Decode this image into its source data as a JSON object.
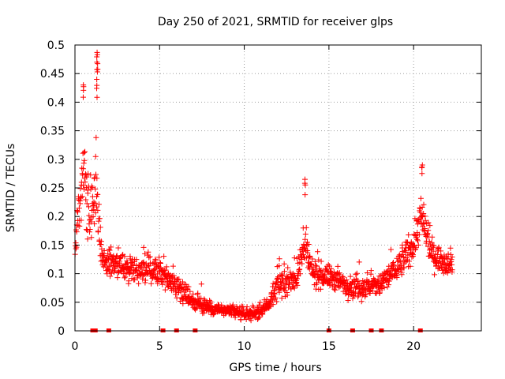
{
  "chart_data": {
    "type": "scatter",
    "title": "Day 250 of 2021, SRMTID for receiver glps",
    "xlabel": "GPS time / hours",
    "ylabel": "SRMTID / TECUs",
    "xlim": [
      0,
      24
    ],
    "ylim": [
      0,
      0.5
    ],
    "xticks": [
      0,
      5,
      10,
      15,
      20
    ],
    "xtick_labels": [
      "0",
      "5",
      "10",
      "15",
      "20"
    ],
    "yticks": [
      0,
      0.05,
      0.1,
      0.15,
      0.2,
      0.25,
      0.3,
      0.35,
      0.4,
      0.45,
      0.5
    ],
    "ytick_labels": [
      "0",
      "0.05",
      "0.1",
      "0.15",
      "0.2",
      "0.25",
      "0.3",
      "0.35",
      "0.4",
      "0.45",
      "0.5"
    ],
    "grid": true,
    "marker": "+",
    "color": "#ff0000",
    "data_range_hours": [
      0,
      22.3
    ],
    "gap_markers_x": [
      1.05,
      1.2,
      2.0,
      5.2,
      6.0,
      7.1,
      15.0,
      16.4,
      17.5,
      18.1,
      20.4
    ],
    "envelope": {
      "x": [
        0,
        0.2,
        0.5,
        0.8,
        1.0,
        1.2,
        1.4,
        1.6,
        2.0,
        3.0,
        4.0,
        5.0,
        6.0,
        7.0,
        8.0,
        9.0,
        10.0,
        10.8,
        11.5,
        12.0,
        13.0,
        13.6,
        14.0,
        15.0,
        16.0,
        17.0,
        18.0,
        19.0,
        19.5,
        20.0,
        20.4,
        20.8,
        21.2,
        22.0,
        22.3
      ],
      "center": [
        0.14,
        0.2,
        0.28,
        0.22,
        0.2,
        0.27,
        0.2,
        0.13,
        0.12,
        0.11,
        0.11,
        0.1,
        0.08,
        0.05,
        0.04,
        0.035,
        0.03,
        0.03,
        0.05,
        0.08,
        0.09,
        0.15,
        0.1,
        0.095,
        0.08,
        0.075,
        0.08,
        0.11,
        0.13,
        0.15,
        0.2,
        0.16,
        0.13,
        0.12,
        0.12
      ],
      "spread": [
        0.03,
        0.06,
        0.1,
        0.08,
        0.07,
        0.1,
        0.07,
        0.04,
        0.035,
        0.035,
        0.035,
        0.035,
        0.03,
        0.02,
        0.018,
        0.015,
        0.015,
        0.015,
        0.02,
        0.03,
        0.035,
        0.05,
        0.035,
        0.03,
        0.03,
        0.03,
        0.03,
        0.035,
        0.04,
        0.04,
        0.06,
        0.045,
        0.035,
        0.03,
        0.03
      ]
    },
    "spikes": [
      {
        "x": 0.5,
        "y": 0.43
      },
      {
        "x": 1.3,
        "y": 0.487
      },
      {
        "x": 1.32,
        "y": 0.47
      },
      {
        "x": 1.28,
        "y": 0.44
      },
      {
        "x": 13.6,
        "y": 0.265
      },
      {
        "x": 20.5,
        "y": 0.29
      }
    ]
  }
}
